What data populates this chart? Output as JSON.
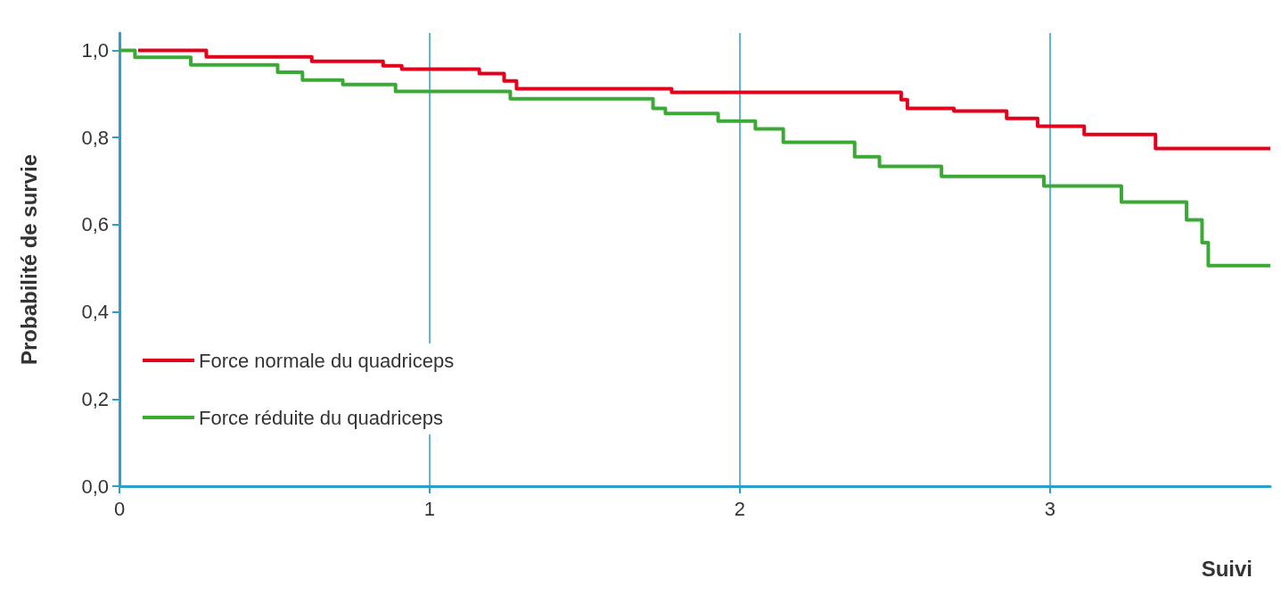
{
  "chart_data": {
    "type": "step",
    "xlabel": "Suivi",
    "ylabel": "Probabilité de survie",
    "xlim": [
      0,
      3.71
    ],
    "xticks": [
      0,
      1,
      2,
      3
    ],
    "ylim": [
      0,
      1.04
    ],
    "yticks": [
      {
        "value": 0,
        "label": "0,0"
      },
      {
        "value": 0.2,
        "label": "0,2"
      },
      {
        "value": 0.4,
        "label": "0,4"
      },
      {
        "value": 0.6,
        "label": "0,6"
      },
      {
        "value": 0.8,
        "label": "0,8"
      },
      {
        "value": 1.0,
        "label": "1,0"
      }
    ],
    "grid": "x",
    "legend": "bottom left",
    "marker": "none",
    "line_style": "solid",
    "series": [
      {
        "name": "Force normale du quadriceps",
        "color": "#e3001b",
        "x": [
          0.06,
          0.28,
          0.62,
          0.85,
          0.91,
          1.16,
          1.24,
          1.28,
          1.78,
          2.52,
          2.54,
          2.69,
          2.86,
          2.96,
          3.11,
          3.34,
          3.71
        ],
        "values": [
          1.0,
          0.985,
          0.975,
          0.965,
          0.957,
          0.947,
          0.93,
          0.912,
          0.904,
          0.887,
          0.867,
          0.861,
          0.844,
          0.826,
          0.807,
          0.775,
          0.775
        ]
      },
      {
        "name": "Force réduite du quadriceps",
        "color": "#3aa935",
        "x": [
          0,
          0.05,
          0.23,
          0.51,
          0.59,
          0.72,
          0.89,
          1.26,
          1.72,
          1.76,
          1.93,
          2.05,
          2.14,
          2.37,
          2.45,
          2.65,
          2.98,
          3.23,
          3.44,
          3.49,
          3.51,
          3.71
        ],
        "values": [
          1.0,
          0.984,
          0.967,
          0.95,
          0.932,
          0.922,
          0.906,
          0.889,
          0.867,
          0.855,
          0.838,
          0.82,
          0.789,
          0.756,
          0.734,
          0.711,
          0.689,
          0.652,
          0.611,
          0.559,
          0.506,
          0.506
        ]
      }
    ]
  }
}
